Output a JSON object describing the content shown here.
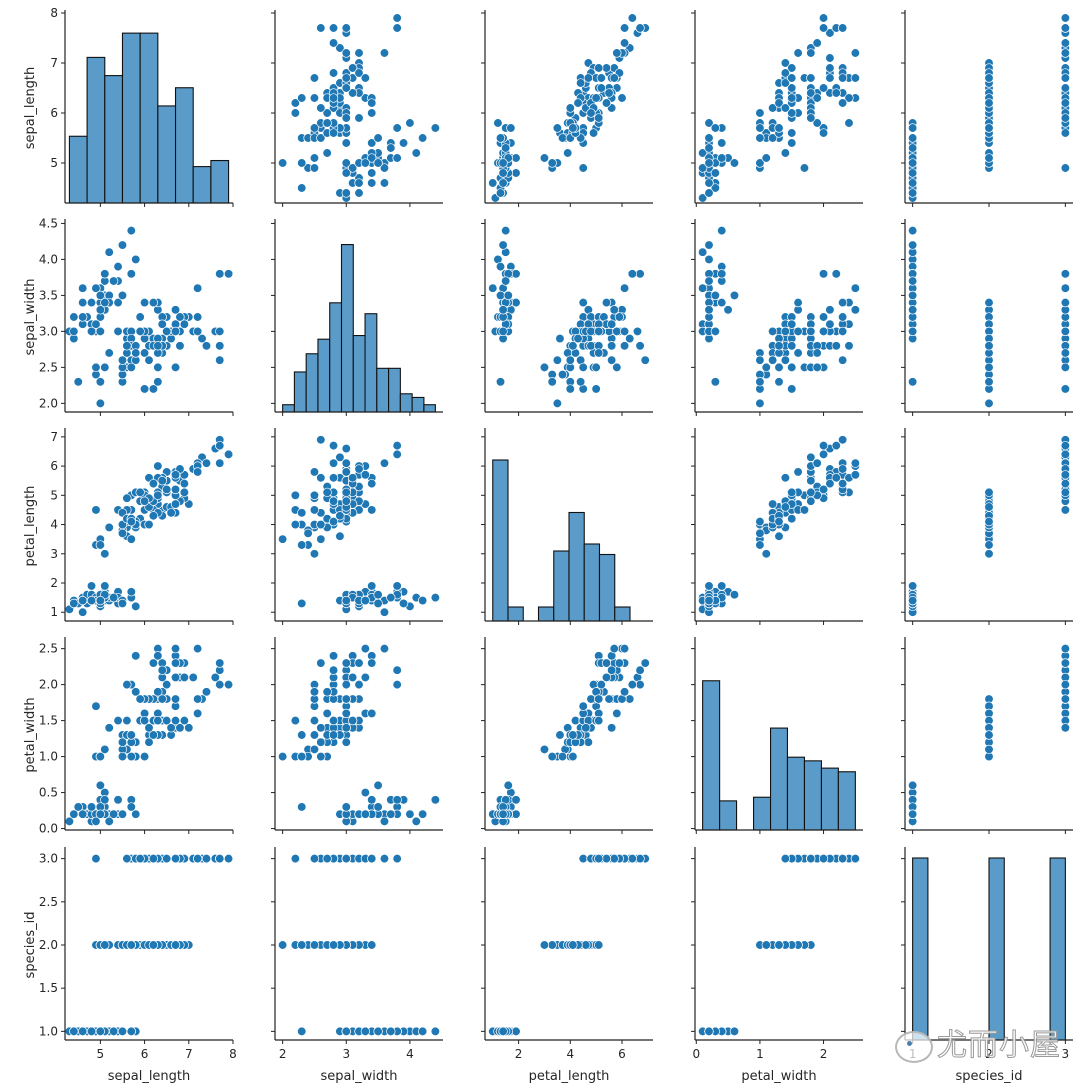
{
  "chart_data": {
    "type": "scatter",
    "subtype": "pairplot",
    "title": "",
    "variables": [
      "sepal_length",
      "sepal_width",
      "petal_length",
      "petal_width",
      "species_id"
    ],
    "diagonal": "histogram",
    "off_diagonal": "scatter",
    "colors": {
      "marker": "#1f77b4",
      "hist_fill": "#5b9bc9",
      "hist_edge": "#000000",
      "marker_edge": "#ffffff"
    },
    "axes": {
      "sepal_length": {
        "range": [
          4.2,
          8.0
        ],
        "ticks": [
          5,
          6,
          7,
          8
        ],
        "yticks": [
          5,
          6,
          7,
          8
        ],
        "ytick_labels": [
          "5",
          "6",
          "7",
          "8"
        ],
        "xtick_labels": [
          "5",
          "6",
          "7",
          "8"
        ]
      },
      "sepal_width": {
        "range": [
          1.88,
          4.52
        ],
        "xticks": [
          2,
          3,
          4
        ],
        "xtick_labels": [
          "2",
          "3",
          "4"
        ],
        "yticks": [
          2.0,
          2.5,
          3.0,
          3.5,
          4.0,
          4.5
        ],
        "ytick_labels": [
          "2.0",
          "2.5",
          "3.0",
          "3.5",
          "4.0",
          "4.5"
        ]
      },
      "petal_length": {
        "range": [
          0.7,
          7.2
        ],
        "xticks": [
          2,
          4,
          6
        ],
        "xtick_labels": [
          "2",
          "4",
          "6"
        ],
        "yticks": [
          1,
          2,
          3,
          4,
          5,
          6,
          7
        ],
        "ytick_labels": [
          "1",
          "2",
          "3",
          "4",
          "5",
          "6",
          "7"
        ]
      },
      "petal_width": {
        "range": [
          -0.02,
          2.62
        ],
        "xticks": [
          0,
          1,
          2
        ],
        "xtick_labels": [
          "0",
          "1",
          "2"
        ],
        "yticks": [
          0.0,
          0.5,
          1.0,
          1.5,
          2.0,
          2.5
        ],
        "ytick_labels": [
          "0.0",
          "0.5",
          "1.0",
          "1.5",
          "2.0",
          "2.5"
        ]
      },
      "species_id": {
        "range": [
          0.9,
          3.1
        ],
        "xticks": [
          1,
          2,
          3
        ],
        "xtick_labels": [
          "1",
          "2",
          "3"
        ],
        "yticks": [
          1.0,
          1.5,
          2.0,
          2.5,
          3.0
        ],
        "ytick_labels": [
          "1.0",
          "1.5",
          "2.0",
          "2.5",
          "3.0"
        ]
      }
    },
    "histograms": {
      "sepal_length": {
        "bins": [
          4.3,
          4.7,
          5.1,
          5.5,
          5.9,
          6.3,
          6.7,
          7.1,
          7.5,
          7.9
        ],
        "counts": [
          11,
          24,
          21,
          28,
          28,
          16,
          19,
          6,
          7
        ]
      },
      "sepal_width": {
        "bins": [
          2.0,
          2.185,
          2.37,
          2.555,
          2.74,
          2.925,
          3.11,
          3.295,
          3.48,
          3.665,
          3.85,
          4.035,
          4.22,
          4.4
        ],
        "counts": [
          2,
          11,
          16,
          20,
          30,
          46,
          21,
          27,
          12,
          12,
          5,
          4,
          2
        ]
      },
      "petal_length": {
        "bins": [
          1.0,
          1.59,
          2.18,
          2.77,
          3.36,
          3.95,
          4.54,
          5.13,
          5.72,
          6.31,
          6.9
        ],
        "counts": [
          46,
          4,
          0,
          4,
          20,
          31,
          22,
          19,
          4
        ]
      },
      "petal_width": {
        "bins": [
          0.1,
          0.367,
          0.633,
          0.9,
          1.167,
          1.433,
          1.7,
          1.967,
          2.233,
          2.5
        ],
        "counts": [
          41,
          8,
          0,
          9,
          28,
          20,
          19,
          17,
          16
        ]
      },
      "species_id": {
        "bins": [
          1.0,
          1.2,
          1.4,
          1.6,
          1.8,
          2.0,
          2.2,
          2.4,
          2.6,
          2.8,
          3.0
        ],
        "counts": [
          50,
          0,
          0,
          0,
          0,
          50,
          0,
          0,
          0,
          50
        ]
      }
    },
    "hist_ymax": {
      "sepal_length": 30,
      "sepal_width": 50,
      "petal_length": 52,
      "petal_width": 50,
      "species_id": 50
    },
    "rows": [
      [
        5.1,
        3.5,
        1.4,
        0.2,
        1
      ],
      [
        4.9,
        3.0,
        1.4,
        0.2,
        1
      ],
      [
        4.7,
        3.2,
        1.3,
        0.2,
        1
      ],
      [
        4.6,
        3.1,
        1.5,
        0.2,
        1
      ],
      [
        5.0,
        3.6,
        1.4,
        0.2,
        1
      ],
      [
        5.4,
        3.9,
        1.7,
        0.4,
        1
      ],
      [
        4.6,
        3.4,
        1.4,
        0.3,
        1
      ],
      [
        5.0,
        3.4,
        1.5,
        0.2,
        1
      ],
      [
        4.4,
        2.9,
        1.4,
        0.2,
        1
      ],
      [
        4.9,
        3.1,
        1.5,
        0.1,
        1
      ],
      [
        5.4,
        3.7,
        1.5,
        0.2,
        1
      ],
      [
        4.8,
        3.4,
        1.6,
        0.2,
        1
      ],
      [
        4.8,
        3.0,
        1.4,
        0.1,
        1
      ],
      [
        4.3,
        3.0,
        1.1,
        0.1,
        1
      ],
      [
        5.8,
        4.0,
        1.2,
        0.2,
        1
      ],
      [
        5.7,
        4.4,
        1.5,
        0.4,
        1
      ],
      [
        5.4,
        3.9,
        1.3,
        0.4,
        1
      ],
      [
        5.1,
        3.5,
        1.4,
        0.3,
        1
      ],
      [
        5.7,
        3.8,
        1.7,
        0.3,
        1
      ],
      [
        5.1,
        3.8,
        1.5,
        0.3,
        1
      ],
      [
        5.4,
        3.4,
        1.7,
        0.2,
        1
      ],
      [
        5.1,
        3.7,
        1.5,
        0.4,
        1
      ],
      [
        4.6,
        3.6,
        1.0,
        0.2,
        1
      ],
      [
        5.1,
        3.3,
        1.7,
        0.5,
        1
      ],
      [
        4.8,
        3.4,
        1.9,
        0.2,
        1
      ],
      [
        5.0,
        3.0,
        1.6,
        0.2,
        1
      ],
      [
        5.0,
        3.4,
        1.6,
        0.4,
        1
      ],
      [
        5.2,
        3.5,
        1.5,
        0.2,
        1
      ],
      [
        5.2,
        3.4,
        1.4,
        0.2,
        1
      ],
      [
        4.7,
        3.2,
        1.6,
        0.2,
        1
      ],
      [
        4.8,
        3.1,
        1.6,
        0.2,
        1
      ],
      [
        5.4,
        3.4,
        1.5,
        0.4,
        1
      ],
      [
        5.2,
        4.1,
        1.5,
        0.1,
        1
      ],
      [
        5.5,
        4.2,
        1.4,
        0.2,
        1
      ],
      [
        4.9,
        3.1,
        1.5,
        0.2,
        1
      ],
      [
        5.0,
        3.2,
        1.2,
        0.2,
        1
      ],
      [
        5.5,
        3.5,
        1.3,
        0.2,
        1
      ],
      [
        4.9,
        3.6,
        1.4,
        0.1,
        1
      ],
      [
        4.4,
        3.0,
        1.3,
        0.2,
        1
      ],
      [
        5.1,
        3.4,
        1.5,
        0.2,
        1
      ],
      [
        5.0,
        3.5,
        1.3,
        0.3,
        1
      ],
      [
        4.5,
        2.3,
        1.3,
        0.3,
        1
      ],
      [
        4.4,
        3.2,
        1.3,
        0.2,
        1
      ],
      [
        5.0,
        3.5,
        1.6,
        0.6,
        1
      ],
      [
        5.1,
        3.8,
        1.9,
        0.4,
        1
      ],
      [
        4.8,
        3.0,
        1.4,
        0.3,
        1
      ],
      [
        5.1,
        3.8,
        1.6,
        0.2,
        1
      ],
      [
        4.6,
        3.2,
        1.4,
        0.2,
        1
      ],
      [
        5.3,
        3.7,
        1.5,
        0.2,
        1
      ],
      [
        5.0,
        3.3,
        1.4,
        0.2,
        1
      ],
      [
        7.0,
        3.2,
        4.7,
        1.4,
        2
      ],
      [
        6.4,
        3.2,
        4.5,
        1.5,
        2
      ],
      [
        6.9,
        3.1,
        4.9,
        1.5,
        2
      ],
      [
        5.5,
        2.3,
        4.0,
        1.3,
        2
      ],
      [
        6.5,
        2.8,
        4.6,
        1.5,
        2
      ],
      [
        5.7,
        2.8,
        4.5,
        1.3,
        2
      ],
      [
        6.3,
        3.3,
        4.7,
        1.6,
        2
      ],
      [
        4.9,
        2.4,
        3.3,
        1.0,
        2
      ],
      [
        6.6,
        2.9,
        4.6,
        1.3,
        2
      ],
      [
        5.2,
        2.7,
        3.9,
        1.4,
        2
      ],
      [
        5.0,
        2.0,
        3.5,
        1.0,
        2
      ],
      [
        5.9,
        3.0,
        4.2,
        1.5,
        2
      ],
      [
        6.0,
        2.2,
        4.0,
        1.0,
        2
      ],
      [
        6.1,
        2.9,
        4.7,
        1.4,
        2
      ],
      [
        5.6,
        2.9,
        3.6,
        1.3,
        2
      ],
      [
        6.7,
        3.1,
        4.4,
        1.4,
        2
      ],
      [
        5.6,
        3.0,
        4.5,
        1.5,
        2
      ],
      [
        5.8,
        2.7,
        4.1,
        1.0,
        2
      ],
      [
        6.2,
        2.2,
        4.5,
        1.5,
        2
      ],
      [
        5.6,
        2.5,
        3.9,
        1.1,
        2
      ],
      [
        5.9,
        3.2,
        4.8,
        1.8,
        2
      ],
      [
        6.1,
        2.8,
        4.0,
        1.3,
        2
      ],
      [
        6.3,
        2.5,
        4.9,
        1.5,
        2
      ],
      [
        6.1,
        2.8,
        4.7,
        1.2,
        2
      ],
      [
        6.4,
        2.9,
        4.3,
        1.3,
        2
      ],
      [
        6.6,
        3.0,
        4.4,
        1.4,
        2
      ],
      [
        6.8,
        2.8,
        4.8,
        1.4,
        2
      ],
      [
        6.7,
        3.0,
        5.0,
        1.7,
        2
      ],
      [
        6.0,
        2.9,
        4.5,
        1.5,
        2
      ],
      [
        5.7,
        2.6,
        3.5,
        1.0,
        2
      ],
      [
        5.5,
        2.4,
        3.8,
        1.1,
        2
      ],
      [
        5.5,
        2.4,
        3.7,
        1.0,
        2
      ],
      [
        5.8,
        2.7,
        3.9,
        1.2,
        2
      ],
      [
        6.0,
        2.7,
        5.1,
        1.6,
        2
      ],
      [
        5.4,
        3.0,
        4.5,
        1.5,
        2
      ],
      [
        6.0,
        3.4,
        4.5,
        1.6,
        2
      ],
      [
        6.7,
        3.1,
        4.7,
        1.5,
        2
      ],
      [
        6.3,
        2.3,
        4.4,
        1.3,
        2
      ],
      [
        5.6,
        3.0,
        4.1,
        1.3,
        2
      ],
      [
        5.5,
        2.5,
        4.0,
        1.3,
        2
      ],
      [
        5.5,
        2.6,
        4.4,
        1.2,
        2
      ],
      [
        6.1,
        3.0,
        4.6,
        1.4,
        2
      ],
      [
        5.8,
        2.6,
        4.0,
        1.2,
        2
      ],
      [
        5.0,
        2.3,
        3.3,
        1.0,
        2
      ],
      [
        5.6,
        2.7,
        4.2,
        1.3,
        2
      ],
      [
        5.7,
        3.0,
        4.2,
        1.2,
        2
      ],
      [
        5.7,
        2.9,
        4.2,
        1.3,
        2
      ],
      [
        6.2,
        2.9,
        4.3,
        1.3,
        2
      ],
      [
        5.1,
        2.5,
        3.0,
        1.1,
        2
      ],
      [
        5.7,
        2.8,
        4.1,
        1.3,
        2
      ],
      [
        6.3,
        3.3,
        6.0,
        2.5,
        3
      ],
      [
        5.8,
        2.7,
        5.1,
        1.9,
        3
      ],
      [
        7.1,
        3.0,
        5.9,
        2.1,
        3
      ],
      [
        6.3,
        2.9,
        5.6,
        1.8,
        3
      ],
      [
        6.5,
        3.0,
        5.8,
        2.2,
        3
      ],
      [
        7.6,
        3.0,
        6.6,
        2.1,
        3
      ],
      [
        4.9,
        2.5,
        4.5,
        1.7,
        3
      ],
      [
        7.3,
        2.9,
        6.3,
        1.8,
        3
      ],
      [
        6.7,
        2.5,
        5.8,
        1.8,
        3
      ],
      [
        7.2,
        3.6,
        6.1,
        2.5,
        3
      ],
      [
        6.5,
        3.2,
        5.1,
        2.0,
        3
      ],
      [
        6.4,
        2.7,
        5.3,
        1.9,
        3
      ],
      [
        6.8,
        3.0,
        5.5,
        2.1,
        3
      ],
      [
        5.7,
        2.5,
        5.0,
        2.0,
        3
      ],
      [
        5.8,
        2.8,
        5.1,
        2.4,
        3
      ],
      [
        6.4,
        3.2,
        5.3,
        2.3,
        3
      ],
      [
        6.5,
        3.0,
        5.5,
        1.8,
        3
      ],
      [
        7.7,
        3.8,
        6.7,
        2.2,
        3
      ],
      [
        7.7,
        2.6,
        6.9,
        2.3,
        3
      ],
      [
        6.0,
        2.2,
        5.0,
        1.5,
        3
      ],
      [
        6.9,
        3.2,
        5.7,
        2.3,
        3
      ],
      [
        5.6,
        2.8,
        4.9,
        2.0,
        3
      ],
      [
        7.7,
        2.8,
        6.7,
        2.0,
        3
      ],
      [
        6.3,
        2.7,
        4.9,
        1.8,
        3
      ],
      [
        6.7,
        3.3,
        5.7,
        2.1,
        3
      ],
      [
        7.2,
        3.2,
        6.0,
        1.8,
        3
      ],
      [
        6.2,
        2.8,
        4.8,
        1.8,
        3
      ],
      [
        6.1,
        3.0,
        4.9,
        1.8,
        3
      ],
      [
        6.4,
        2.8,
        5.6,
        2.1,
        3
      ],
      [
        7.2,
        3.0,
        5.8,
        1.6,
        3
      ],
      [
        7.4,
        2.8,
        6.1,
        1.9,
        3
      ],
      [
        7.9,
        3.8,
        6.4,
        2.0,
        3
      ],
      [
        6.4,
        2.8,
        5.6,
        2.2,
        3
      ],
      [
        6.3,
        2.8,
        5.1,
        1.5,
        3
      ],
      [
        6.1,
        2.6,
        5.6,
        1.4,
        3
      ],
      [
        7.7,
        3.0,
        6.1,
        2.3,
        3
      ],
      [
        6.3,
        3.4,
        5.6,
        2.4,
        3
      ],
      [
        6.4,
        3.1,
        5.5,
        1.8,
        3
      ],
      [
        6.0,
        3.0,
        4.8,
        1.8,
        3
      ],
      [
        6.9,
        3.1,
        5.4,
        2.1,
        3
      ],
      [
        6.7,
        3.1,
        5.6,
        2.4,
        3
      ],
      [
        6.9,
        3.1,
        5.1,
        2.3,
        3
      ],
      [
        5.8,
        2.7,
        5.1,
        1.9,
        3
      ],
      [
        6.8,
        3.2,
        5.9,
        2.3,
        3
      ],
      [
        6.7,
        3.3,
        5.7,
        2.5,
        3
      ],
      [
        6.7,
        3.0,
        5.2,
        2.3,
        3
      ],
      [
        6.3,
        2.5,
        5.0,
        1.9,
        3
      ],
      [
        6.5,
        3.0,
        5.2,
        2.0,
        3
      ],
      [
        6.2,
        3.4,
        5.4,
        2.3,
        3
      ],
      [
        5.9,
        3.0,
        5.1,
        1.8,
        3
      ]
    ]
  },
  "watermark": {
    "text": "尤而小屋",
    "icon": "wechat-icon"
  }
}
